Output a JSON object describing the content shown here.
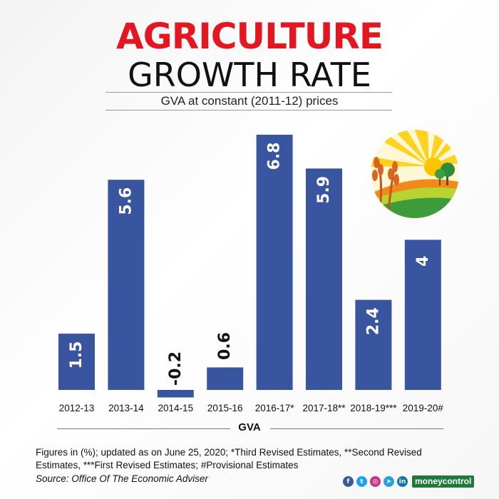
{
  "title_line1": "AGRICULTURE",
  "title_line2": "GROWTH RATE",
  "subtitle": "GVA at constant (2011-12) prices",
  "colors": {
    "bar": "#3a559f",
    "title_red": "#e4161f",
    "text": "#111111"
  },
  "chart_data": {
    "type": "bar",
    "categories": [
      "2012-13",
      "2013-14",
      "2014-15",
      "2015-16",
      "2016-17*",
      "2017-18**",
      "2018-19***",
      "2019-20#"
    ],
    "values": [
      1.5,
      5.6,
      -0.2,
      0.6,
      6.8,
      5.9,
      2.4,
      4
    ],
    "data_labels": [
      "1.5",
      "5.6",
      "-0.2",
      "0.6",
      "6.8",
      "5.9",
      "2.4",
      "4"
    ],
    "xlabel": "GVA",
    "ylabel": "",
    "ylim": [
      -0.2,
      6.8
    ],
    "grid": false,
    "legend": "none"
  },
  "footnote": "Figures in (%); updated as on June 25, 2020; *Third Revised Estimates, **Second Revised Estimates, ***First Revised Estimates; #Provisional Estimates",
  "source": "Source: Office Of The Economic Adviser",
  "social": {
    "icons": [
      {
        "name": "facebook-icon",
        "glyph": "f",
        "color": "#3b5998"
      },
      {
        "name": "twitter-icon",
        "glyph": "t",
        "color": "#1da1f2"
      },
      {
        "name": "instagram-icon",
        "glyph": "◎",
        "color": "#c13584"
      },
      {
        "name": "telegram-icon",
        "glyph": "➤",
        "color": "#2aa1da"
      },
      {
        "name": "linkedin-icon",
        "glyph": "in",
        "color": "#0e76a8"
      }
    ],
    "brand": "moneycontrol"
  }
}
